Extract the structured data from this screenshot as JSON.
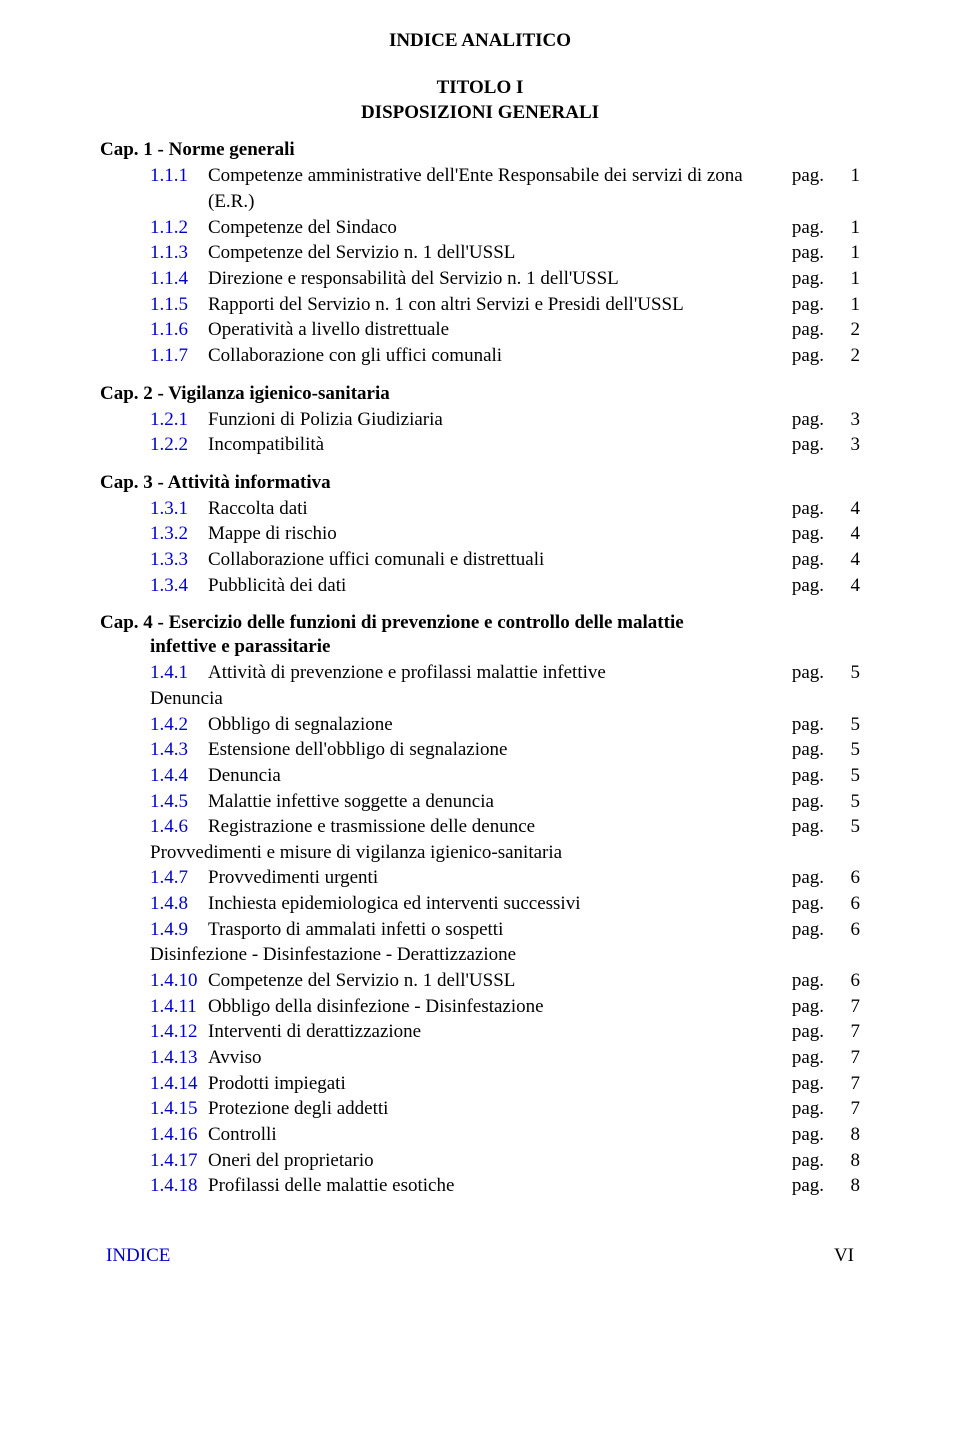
{
  "main_title": "INDICE ANALITICO",
  "section_title_line1": "TITOLO I",
  "section_title_line2": "DISPOSIZIONI GENERALI",
  "link_color": "#0000cc",
  "text_color": "#000000",
  "background_color": "#ffffff",
  "font_family": "Times New Roman",
  "base_fontsize_pt": 14,
  "pag_label": "pag.",
  "caps": [
    {
      "header": "Cap. 1 - Norme generali",
      "entries": [
        {
          "num": "1.1.1",
          "label": "Competenze amministrative dell'Ente Responsabile dei servizi di zona (E.R.)",
          "page": "1"
        },
        {
          "num": "1.1.2",
          "label": "Competenze del Sindaco",
          "page": "1"
        },
        {
          "num": "1.1.3",
          "label": "Competenze del Servizio n. 1 dell'USSL",
          "page": "1"
        },
        {
          "num": "1.1.4",
          "label": "Direzione e responsabilità del Servizio n. 1 dell'USSL",
          "page": "1"
        },
        {
          "num": "1.1.5",
          "label": "Rapporti del Servizio n. 1 con altri Servizi e Presidi dell'USSL",
          "page": "1"
        },
        {
          "num": "1.1.6",
          "label": "Operatività a livello distrettuale",
          "page": "2"
        },
        {
          "num": "1.1.7",
          "label": "Collaborazione con gli uffici comunali",
          "page": "2"
        }
      ]
    },
    {
      "header": "Cap. 2 - Vigilanza igienico-sanitaria",
      "entries": [
        {
          "num": "1.2.1",
          "label": "Funzioni di Polizia Giudiziaria",
          "page": "3"
        },
        {
          "num": "1.2.2",
          "label": "Incompatibilità",
          "page": "3"
        }
      ]
    },
    {
      "header": "Cap. 3 - Attività informativa",
      "entries": [
        {
          "num": "1.3.1",
          "label": "Raccolta dati",
          "page": "4"
        },
        {
          "num": "1.3.2",
          "label": "Mappe di rischio",
          "page": "4"
        },
        {
          "num": "1.3.3",
          "label": "Collaborazione uffici comunali e distrettuali",
          "page": "4"
        },
        {
          "num": "1.3.4",
          "label": "Pubblicità dei dati",
          "page": "4"
        }
      ]
    },
    {
      "header": "Cap. 4 - Esercizio delle funzioni di prevenzione e controllo delle malattie",
      "subheader": "infettive e parassitarie",
      "groups": [
        {
          "entries": [
            {
              "num": "1.4.1",
              "label": "Attività di prevenzione e profilassi malattie infettive",
              "page": "5"
            }
          ]
        },
        {
          "subline": "Denuncia",
          "entries": [
            {
              "num": "1.4.2",
              "label": "Obbligo di segnalazione",
              "page": "5"
            },
            {
              "num": "1.4.3",
              "label": "Estensione dell'obbligo di segnalazione",
              "page": "5"
            },
            {
              "num": "1.4.4",
              "label": "Denuncia",
              "page": "5"
            },
            {
              "num": "1.4.5",
              "label": "Malattie infettive soggette a denuncia",
              "page": "5"
            },
            {
              "num": "1.4.6",
              "label": "Registrazione e trasmissione delle denunce",
              "page": "5"
            }
          ]
        },
        {
          "subline": "Provvedimenti e misure di vigilanza igienico-sanitaria",
          "entries": [
            {
              "num": "1.4.7",
              "label": "Provvedimenti urgenti",
              "page": "6"
            },
            {
              "num": "1.4.8",
              "label": "Inchiesta epidemiologica ed interventi successivi",
              "page": "6"
            },
            {
              "num": "1.4.9",
              "label": "Trasporto di ammalati infetti o sospetti",
              "page": "6"
            }
          ]
        },
        {
          "subline": "Disinfezione - Disinfestazione - Derattizzazione",
          "entries": [
            {
              "num": "1.4.10",
              "label": "Competenze del Servizio n. 1 dell'USSL",
              "page": "6"
            },
            {
              "num": "1.4.11",
              "label": "Obbligo della disinfezione - Disinfestazione",
              "page": "7"
            },
            {
              "num": "1.4.12",
              "label": "Interventi di derattizzazione",
              "page": "7"
            },
            {
              "num": "1.4.13",
              "label": "Avviso",
              "page": "7"
            },
            {
              "num": "1.4.14",
              "label": "Prodotti impiegati",
              "page": "7"
            },
            {
              "num": "1.4.15",
              "label": "Protezione degli addetti",
              "page": "7"
            },
            {
              "num": "1.4.16",
              "label": "Controlli",
              "page": "8"
            },
            {
              "num": "1.4.17",
              "label": "Oneri del proprietario",
              "page": "8"
            },
            {
              "num": "1.4.18",
              "label": "Profilassi delle malattie esotiche",
              "page": "8"
            }
          ]
        }
      ]
    }
  ],
  "footer": {
    "left": "INDICE",
    "right": "VI"
  }
}
